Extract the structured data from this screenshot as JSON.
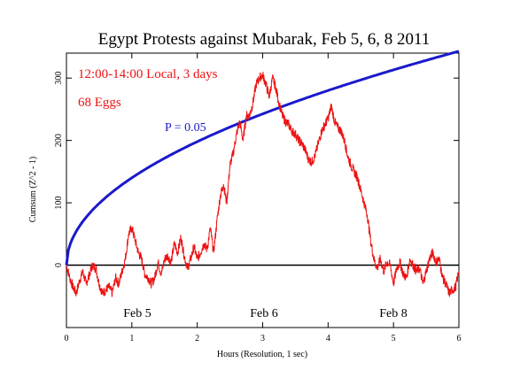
{
  "chart_data": {
    "type": "line",
    "title": "Egypt Protests against Mubarak, Feb 5, 6, 8 2011",
    "xlabel": "Hours (Resolution, 1 sec)",
    "ylabel": "Cumsum (Z^2 - 1)",
    "xlim": [
      0,
      6
    ],
    "ylim": [
      -100,
      340
    ],
    "x_ticks": [
      "0",
      "1",
      "2",
      "3",
      "4",
      "5",
      "6"
    ],
    "y_ticks": [
      "0",
      "100",
      "200",
      "300"
    ],
    "grid": false,
    "annotations": {
      "line1": "12:00-14:00 Local, 3 days",
      "line2": "68 Eggs",
      "probability_label": "P = 0.05",
      "day1": "Feb 5",
      "day2": "Feb 6",
      "day3": "Feb 8"
    },
    "colors": {
      "cumsum": "#ee1111",
      "probability": "#1a1acc",
      "baseline": "#000000",
      "axis": "#000000"
    },
    "series": [
      {
        "role": "cumsum",
        "x": [
          0,
          0.05,
          0.1,
          0.15,
          0.2,
          0.25,
          0.3,
          0.35,
          0.4,
          0.45,
          0.5,
          0.55,
          0.6,
          0.65,
          0.7,
          0.75,
          0.8,
          0.85,
          0.9,
          0.95,
          1.0,
          1.05,
          1.1,
          1.15,
          1.2,
          1.25,
          1.3,
          1.35,
          1.4,
          1.45,
          1.5,
          1.55,
          1.6,
          1.65,
          1.7,
          1.75,
          1.8,
          1.85,
          1.9,
          1.95,
          2.0,
          2.05,
          2.1,
          2.15,
          2.2,
          2.25,
          2.3,
          2.35,
          2.4,
          2.45,
          2.5,
          2.55,
          2.6,
          2.65,
          2.7,
          2.75,
          2.8,
          2.85,
          2.9,
          2.95,
          3.0,
          3.05,
          3.1,
          3.15,
          3.2,
          3.25,
          3.3,
          3.35,
          3.4,
          3.45,
          3.5,
          3.55,
          3.6,
          3.65,
          3.7,
          3.75,
          3.8,
          3.85,
          3.9,
          3.95,
          4.0,
          4.05,
          4.1,
          4.15,
          4.2,
          4.25,
          4.3,
          4.35,
          4.4,
          4.45,
          4.5,
          4.55,
          4.6,
          4.65,
          4.7,
          4.75,
          4.8,
          4.85,
          4.9,
          4.95,
          5.0,
          5.05,
          5.1,
          5.15,
          5.2,
          5.25,
          5.3,
          5.35,
          5.4,
          5.45,
          5.5,
          5.55,
          5.6,
          5.65,
          5.7,
          5.75,
          5.8,
          5.85,
          5.9,
          5.95,
          6.0
        ],
        "y": [
          0,
          -20,
          -35,
          -45,
          -25,
          -10,
          -30,
          -15,
          0,
          -5,
          -30,
          -45,
          -40,
          -35,
          -45,
          -20,
          -30,
          -10,
          10,
          50,
          60,
          40,
          20,
          10,
          -15,
          -20,
          -30,
          -20,
          5,
          -15,
          10,
          15,
          5,
          35,
          20,
          45,
          15,
          -5,
          10,
          30,
          10,
          20,
          35,
          25,
          60,
          20,
          70,
          110,
          130,
          100,
          160,
          180,
          210,
          230,
          200,
          240,
          240,
          260,
          290,
          300,
          305,
          290,
          270,
          300,
          285,
          260,
          240,
          230,
          225,
          215,
          210,
          200,
          195,
          185,
          170,
          165,
          175,
          195,
          215,
          225,
          235,
          255,
          230,
          220,
          215,
          200,
          175,
          160,
          150,
          140,
          120,
          100,
          80,
          40,
          10,
          -5,
          10,
          -10,
          5,
          0,
          -30,
          -5,
          5,
          -15,
          -20,
          10,
          0,
          -10,
          -5,
          -30,
          -10,
          10,
          20,
          5,
          10,
          -20,
          -30,
          -45,
          -40,
          -35,
          -10
        ]
      },
      {
        "role": "probability",
        "name": "P = 0.05",
        "function": "1.645*sqrt(2*3600*n)/sqrt(N)",
        "x_start": 0,
        "x_end": 6,
        "y_at_end": 343
      }
    ]
  }
}
